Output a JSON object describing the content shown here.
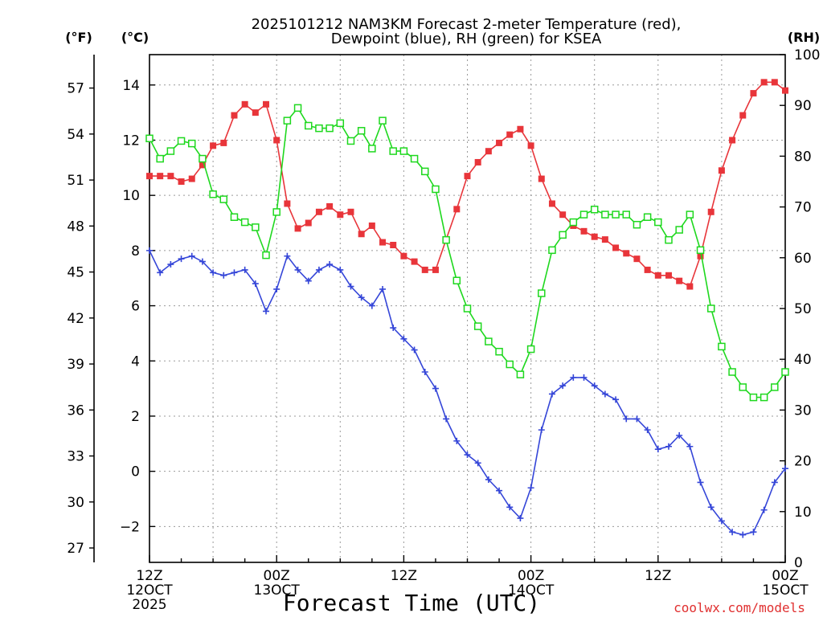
{
  "title_line1": "2025101212 NAM3KM Forecast 2-meter Temperature (red),",
  "title_line2": "Dewpoint (blue), RH (green) for KSEA",
  "units": {
    "fahrenheit": "(°F)",
    "celsius": "(°C)",
    "rh": "(RH)"
  },
  "x_axis_title": "Forecast Time (UTC)",
  "credit": "coolwx.com/models",
  "colors": {
    "temperature": "#e8353a",
    "dewpoint": "#3546d8",
    "rh": "#1ed81e",
    "grid": "#9a9a9a",
    "axis": "#000000"
  },
  "chart_data": {
    "type": "line",
    "title": "2025101212 NAM3KM Forecast 2-meter Temperature (red), Dewpoint (blue), RH (green) for KSEA",
    "xlabel": "Forecast Time (UTC)",
    "x_unit": "forecast hour",
    "xlim": [
      0,
      60
    ],
    "ylim_c": [
      -3.3,
      15.1
    ],
    "ylim_f": [
      26.06,
      59.18
    ],
    "ylim_rh": [
      0,
      100
    ],
    "grid": true,
    "x_ticks": [
      {
        "x": 0,
        "lines": [
          "12Z",
          "12OCT",
          "2025"
        ]
      },
      {
        "x": 12,
        "lines": [
          "00Z",
          "13OCT"
        ]
      },
      {
        "x": 24,
        "lines": [
          "12Z"
        ]
      },
      {
        "x": 36,
        "lines": [
          "00Z",
          "14OCT"
        ]
      },
      {
        "x": 48,
        "lines": [
          "12Z"
        ]
      },
      {
        "x": 60,
        "lines": [
          "00Z",
          "15OCT"
        ]
      }
    ],
    "y_ticks_c": [
      "-2",
      "0",
      "2",
      "4",
      "6",
      "8",
      "10",
      "12",
      "14"
    ],
    "y_ticks_f": [
      "27",
      "30",
      "33",
      "36",
      "39",
      "42",
      "45",
      "48",
      "51",
      "54",
      "57"
    ],
    "y_ticks_rh": [
      "0",
      "10",
      "20",
      "30",
      "40",
      "50",
      "60",
      "70",
      "80",
      "90",
      "100"
    ],
    "series": [
      {
        "name": "2-meter Temperature",
        "axis": "celsius",
        "marker": "filled-square",
        "color": "#e8353a",
        "x": [
          0,
          1,
          2,
          3,
          4,
          5,
          6,
          7,
          8,
          9,
          10,
          11,
          12,
          13,
          14,
          15,
          16,
          17,
          18,
          19,
          20,
          21,
          22,
          23,
          24,
          25,
          26,
          27,
          28,
          29,
          30,
          31,
          32,
          33,
          34,
          35,
          36,
          37,
          38,
          39,
          40,
          41,
          42,
          43,
          44,
          45,
          46,
          47,
          48,
          49,
          50,
          51,
          52,
          53,
          54,
          55,
          56,
          57,
          58,
          59,
          60
        ],
        "values": [
          10.7,
          10.7,
          10.7,
          10.5,
          10.6,
          11.1,
          11.8,
          11.9,
          12.9,
          13.3,
          13.0,
          13.3,
          12.0,
          9.7,
          8.8,
          9.0,
          9.4,
          9.6,
          9.3,
          9.4,
          8.6,
          8.9,
          8.3,
          8.2,
          7.8,
          7.6,
          7.3,
          7.3,
          8.4,
          9.5,
          10.7,
          11.2,
          11.6,
          11.9,
          12.2,
          12.4,
          11.8,
          10.6,
          9.7,
          9.3,
          8.9,
          8.7,
          8.5,
          8.4,
          8.1,
          7.9,
          7.7,
          7.3,
          7.1,
          7.1,
          6.9,
          6.7,
          7.8,
          9.4,
          10.9,
          12.0,
          12.9,
          13.7,
          14.1,
          14.1,
          13.8
        ]
      },
      {
        "name": "Dewpoint",
        "axis": "celsius",
        "marker": "plus",
        "color": "#3546d8",
        "x": [
          0,
          1,
          2,
          3,
          4,
          5,
          6,
          7,
          8,
          9,
          10,
          11,
          12,
          13,
          14,
          15,
          16,
          17,
          18,
          19,
          20,
          21,
          22,
          23,
          24,
          25,
          26,
          27,
          28,
          29,
          30,
          31,
          32,
          33,
          34,
          35,
          36,
          37,
          38,
          39,
          40,
          41,
          42,
          43,
          44,
          45,
          46,
          47,
          48,
          49,
          50,
          51,
          52,
          53,
          54,
          55,
          56,
          57,
          58,
          59,
          60
        ],
        "values": [
          8.0,
          7.2,
          7.5,
          7.7,
          7.8,
          7.6,
          7.2,
          7.1,
          7.2,
          7.3,
          6.8,
          5.8,
          6.6,
          7.8,
          7.3,
          6.9,
          7.3,
          7.5,
          7.3,
          6.7,
          6.3,
          6.0,
          6.6,
          5.2,
          4.8,
          4.4,
          3.6,
          3.0,
          1.9,
          1.1,
          0.6,
          0.3,
          -0.3,
          -0.7,
          -1.3,
          -1.7,
          -0.6,
          1.5,
          2.8,
          3.1,
          3.4,
          3.4,
          3.1,
          2.8,
          2.6,
          1.9,
          1.9,
          1.5,
          0.8,
          0.9,
          1.3,
          0.9,
          -0.4,
          -1.3,
          -1.8,
          -2.2,
          -2.3,
          -2.2,
          -1.4,
          -0.4,
          0.1
        ]
      },
      {
        "name": "Relative Humidity",
        "axis": "rh",
        "marker": "open-square",
        "color": "#1ed81e",
        "x": [
          0,
          1,
          2,
          3,
          4,
          5,
          6,
          7,
          8,
          9,
          10,
          11,
          12,
          13,
          14,
          15,
          16,
          17,
          18,
          19,
          20,
          21,
          22,
          23,
          24,
          25,
          26,
          27,
          28,
          29,
          30,
          31,
          32,
          33,
          34,
          35,
          36,
          37,
          38,
          39,
          40,
          41,
          42,
          43,
          44,
          45,
          46,
          47,
          48,
          49,
          50,
          51,
          52,
          53,
          54,
          55,
          56,
          57,
          58,
          59,
          60
        ],
        "values": [
          83.5,
          79.5,
          81.0,
          83.0,
          82.5,
          79.5,
          72.5,
          71.5,
          68.0,
          67.0,
          66.0,
          60.5,
          69.0,
          87.0,
          89.5,
          86.0,
          85.5,
          85.5,
          86.5,
          83.0,
          85.0,
          81.5,
          87.0,
          81.0,
          81.0,
          79.5,
          77.0,
          73.5,
          63.5,
          55.5,
          50.0,
          46.5,
          43.5,
          41.5,
          39.0,
          37.0,
          42.0,
          53.0,
          61.5,
          64.5,
          67.0,
          68.5,
          69.5,
          68.5,
          68.5,
          68.5,
          66.5,
          68.0,
          67.0,
          63.5,
          65.5,
          68.5,
          61.5,
          50.0,
          42.5,
          37.5,
          34.5,
          32.5,
          32.5,
          34.5,
          37.5
        ]
      }
    ]
  }
}
